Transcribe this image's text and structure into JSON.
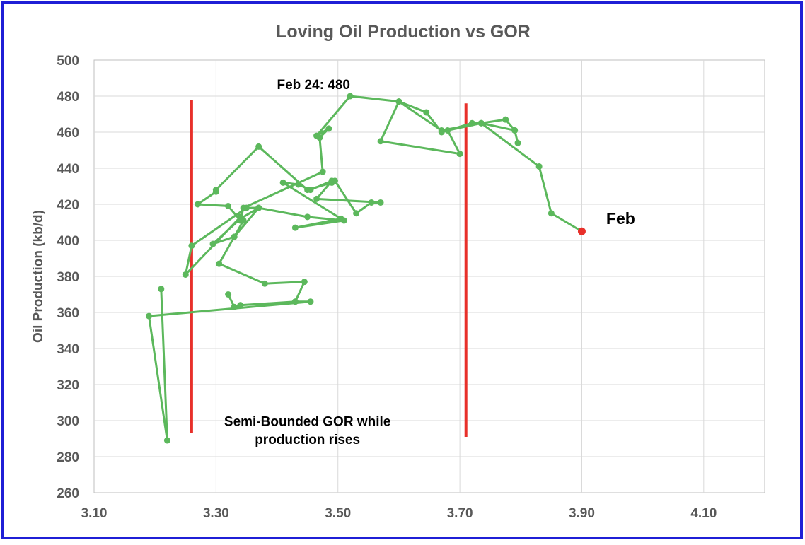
{
  "chart_data": {
    "type": "line",
    "title": "Loving Oil Production vs GOR",
    "xlabel": "",
    "ylabel": "Oil Production (kb/d)",
    "xlim": [
      3.1,
      4.2
    ],
    "ylim": [
      260,
      500
    ],
    "x_ticks": [
      "3.10",
      "3.30",
      "3.50",
      "3.70",
      "3.90",
      "4.10"
    ],
    "y_ticks": [
      "260",
      "280",
      "300",
      "320",
      "340",
      "360",
      "380",
      "400",
      "420",
      "440",
      "460",
      "480",
      "500"
    ],
    "grid": true,
    "series": [
      {
        "color": "#5cb85c",
        "points": [
          [
            3.21,
            373
          ],
          [
            3.22,
            289
          ],
          [
            3.19,
            358
          ],
          [
            3.455,
            366
          ],
          [
            3.43,
            366
          ],
          [
            3.34,
            364
          ],
          [
            3.33,
            363
          ],
          [
            3.32,
            370
          ],
          [
            3.33,
            363
          ],
          [
            3.34,
            364
          ],
          [
            3.43,
            366
          ],
          [
            3.445,
            377
          ],
          [
            3.38,
            376
          ],
          [
            3.305,
            387
          ],
          [
            3.345,
            411
          ],
          [
            3.34,
            413
          ],
          [
            3.25,
            381
          ],
          [
            3.26,
            397
          ],
          [
            3.35,
            418
          ],
          [
            3.37,
            418
          ],
          [
            3.33,
            402
          ],
          [
            3.295,
            398
          ],
          [
            3.34,
            412
          ],
          [
            3.37,
            418
          ],
          [
            3.45,
            413
          ],
          [
            3.51,
            411
          ],
          [
            3.43,
            407
          ],
          [
            3.505,
            412
          ],
          [
            3.41,
            432
          ],
          [
            3.435,
            431
          ],
          [
            3.455,
            428
          ],
          [
            3.49,
            433
          ],
          [
            3.465,
            423
          ],
          [
            3.57,
            421
          ],
          [
            3.555,
            421
          ],
          [
            3.53,
            415
          ],
          [
            3.495,
            433
          ],
          [
            3.49,
            432
          ],
          [
            3.45,
            428
          ],
          [
            3.37,
            452
          ],
          [
            3.3,
            428
          ],
          [
            3.3,
            427
          ],
          [
            3.27,
            420
          ],
          [
            3.32,
            419
          ],
          [
            3.34,
            411
          ],
          [
            3.345,
            418
          ],
          [
            3.475,
            438
          ],
          [
            3.47,
            457
          ],
          [
            3.485,
            462
          ],
          [
            3.465,
            458
          ],
          [
            3.52,
            480
          ],
          [
            3.6,
            477
          ],
          [
            3.645,
            471
          ],
          [
            3.67,
            460
          ],
          [
            3.72,
            465
          ],
          [
            3.735,
            465
          ],
          [
            3.67,
            461
          ],
          [
            3.6,
            477
          ],
          [
            3.57,
            455
          ],
          [
            3.7,
            448
          ],
          [
            3.68,
            461
          ],
          [
            3.735,
            465
          ],
          [
            3.775,
            467
          ],
          [
            3.79,
            461
          ],
          [
            3.795,
            454
          ],
          [
            3.79,
            461
          ],
          [
            3.735,
            465
          ],
          [
            3.83,
            441
          ],
          [
            3.85,
            415
          ],
          [
            3.9,
            405
          ]
        ]
      }
    ],
    "last_point": {
      "x": 3.9,
      "y": 405,
      "color": "#e8302a"
    },
    "vertical_lines": [
      {
        "x": 3.26,
        "y_from": 293,
        "y_to": 478,
        "color": "#e8302a"
      },
      {
        "x": 3.71,
        "y_from": 291,
        "y_to": 476,
        "color": "#e8302a"
      }
    ],
    "annotations": {
      "peak": {
        "text": "Feb 24: 480",
        "x": 3.46,
        "y": 484
      },
      "last": {
        "text": "Feb",
        "x": 3.94,
        "y": 409
      },
      "bounded_line1": {
        "text": "Semi-Bounded GOR while",
        "x": 3.45,
        "y": 297
      },
      "bounded_line2": {
        "text": "production rises",
        "x": 3.45,
        "y": 287
      }
    }
  },
  "colors": {
    "frame_border": "#1f1fd6",
    "grid": "#d9d9d9",
    "text": "#595959"
  }
}
